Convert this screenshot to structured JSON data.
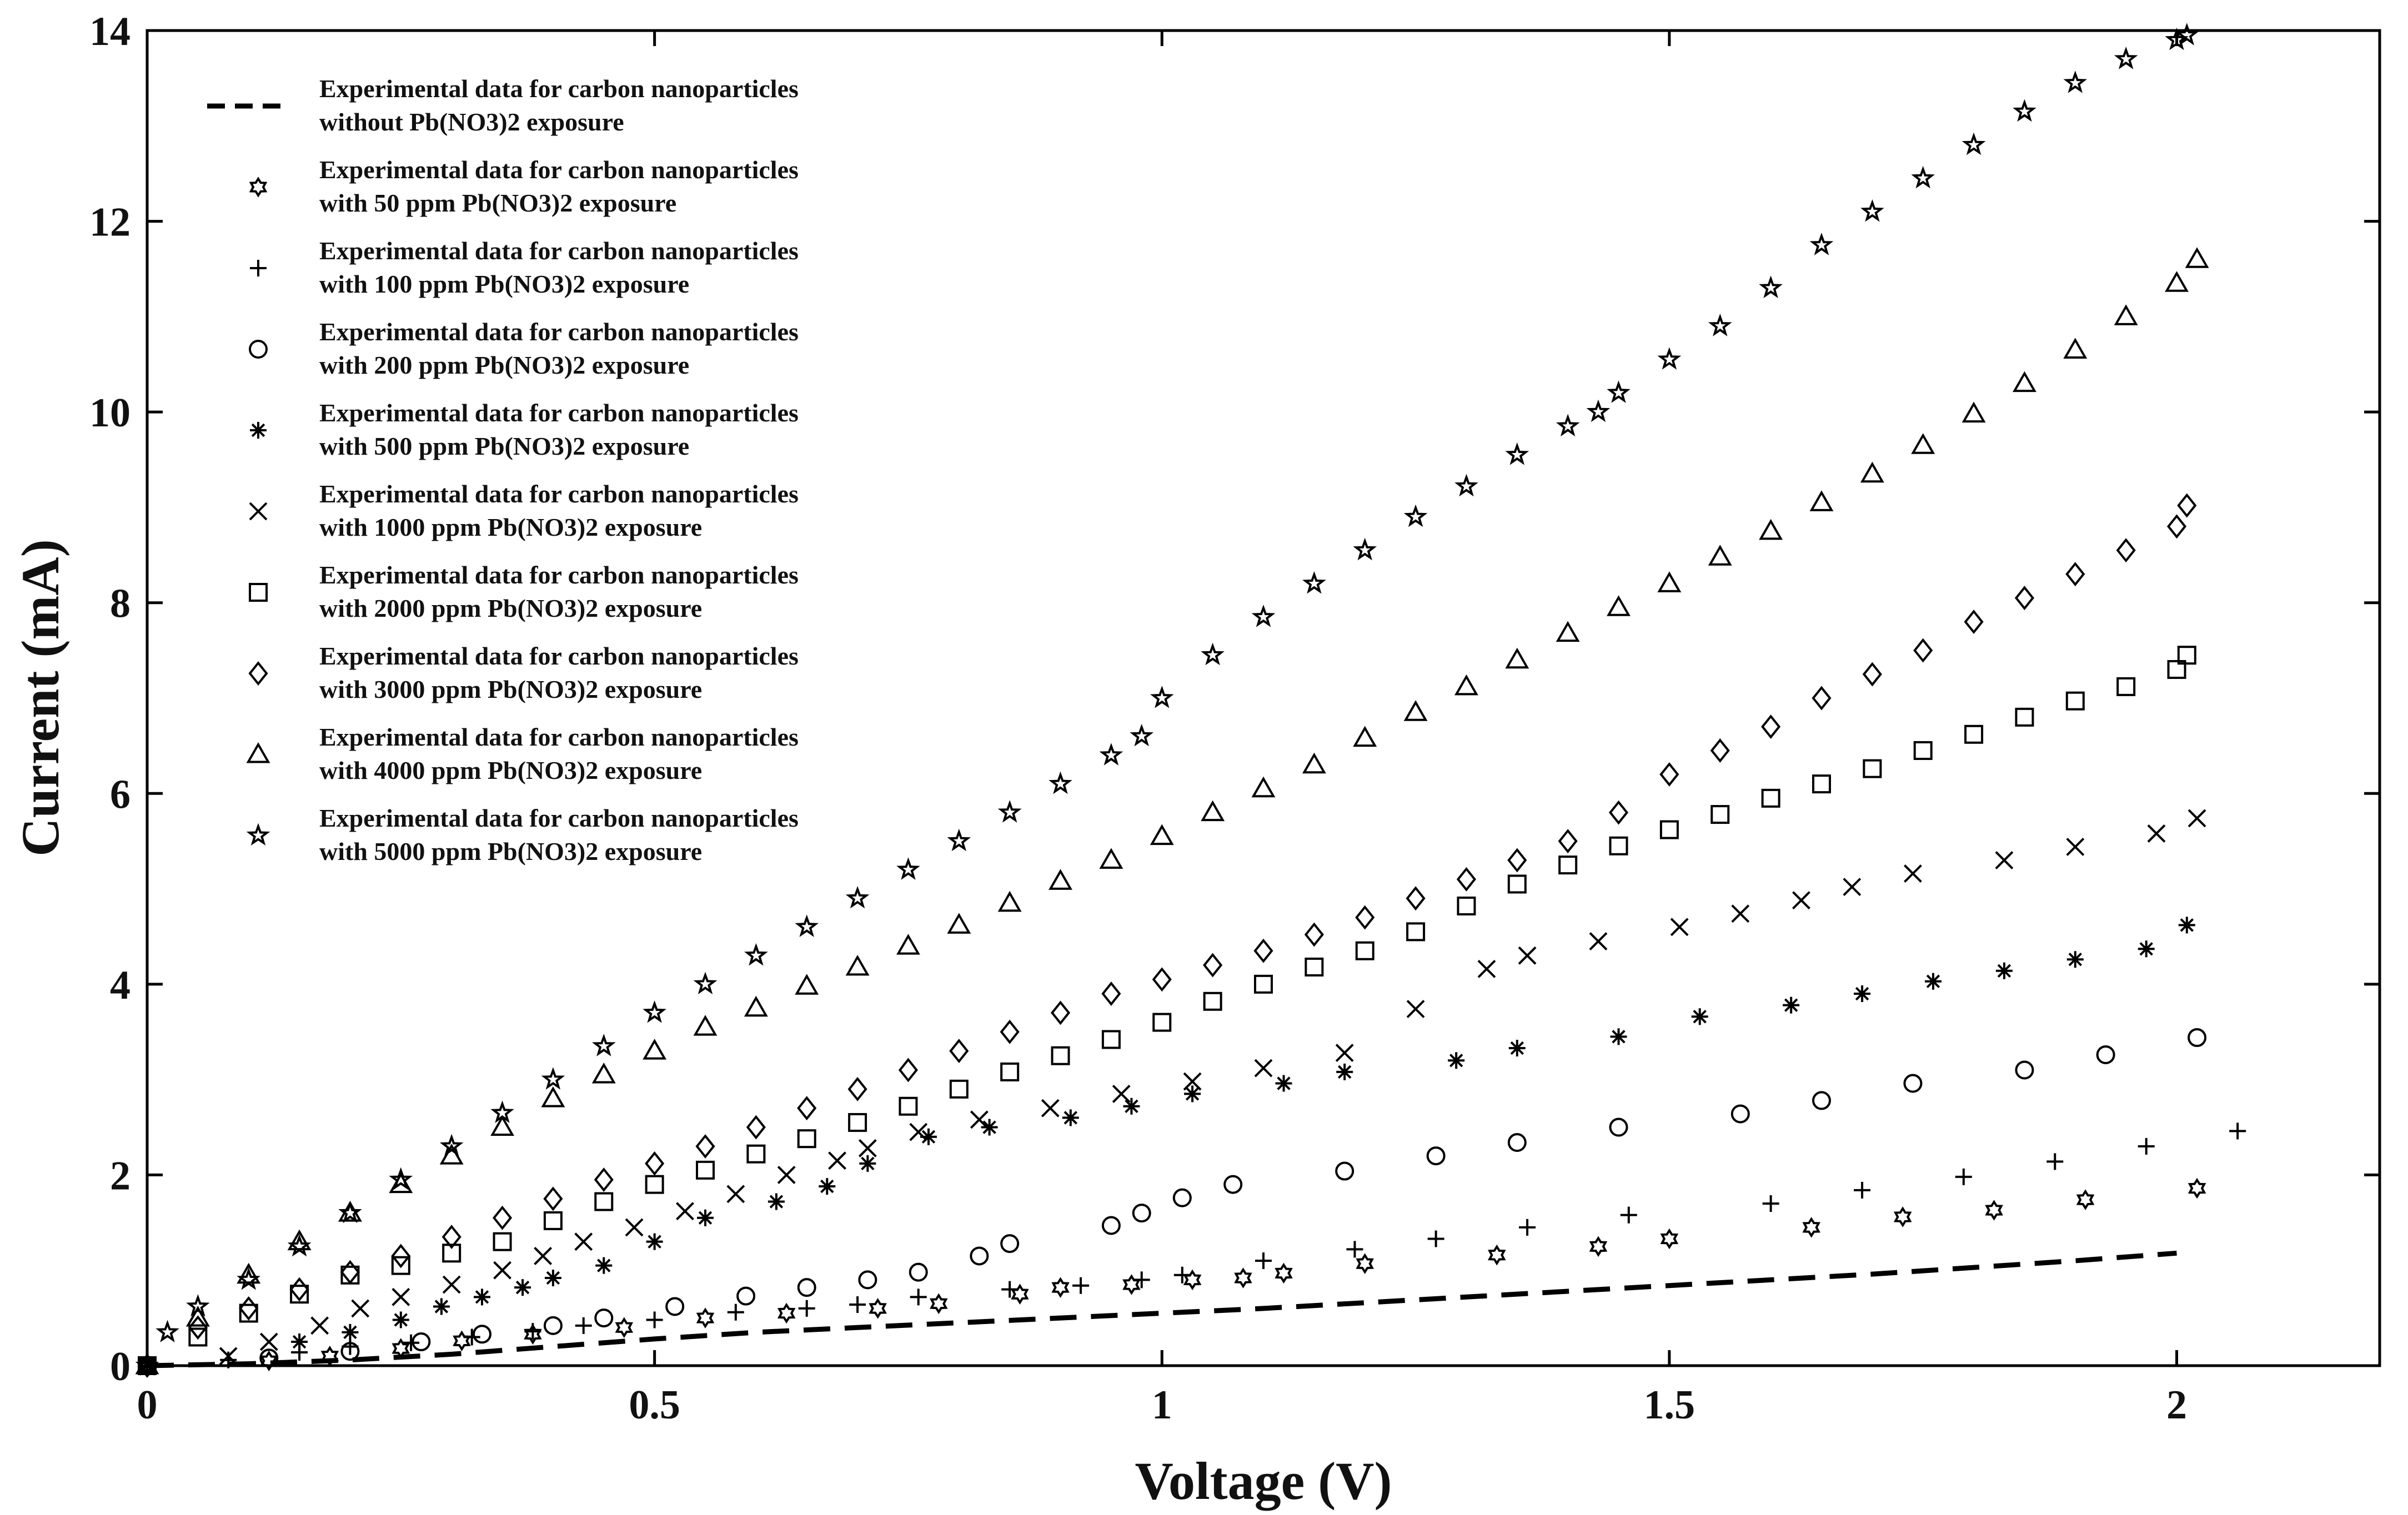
{
  "chart_data": {
    "type": "scatter",
    "title": "",
    "xlabel": "Voltage (V)",
    "ylabel": "Current (mA)",
    "xlim": [
      0,
      2.2
    ],
    "ylim": [
      0,
      14
    ],
    "grid": false,
    "legend_position": "top-left",
    "x_ticks": [
      0,
      0.5,
      1,
      1.5,
      2
    ],
    "x_tick_labels": [
      "0",
      "0.5",
      "1",
      "1.5",
      "2"
    ],
    "y_ticks": [
      0,
      2,
      4,
      6,
      8,
      10,
      12,
      14
    ],
    "y_tick_labels": [
      "0",
      "2",
      "4",
      "6",
      "8",
      "10",
      "12",
      "14"
    ],
    "series": [
      {
        "name": "without",
        "marker": "dashed-line",
        "legend_line1": "Experimental data for carbon nanoparticles",
        "legend_line2": "without Pb(NO3)2 exposure",
        "x": [
          0,
          0.1,
          0.2,
          0.3,
          0.4,
          0.5,
          0.6,
          0.7,
          0.8,
          0.9,
          1.0,
          1.1,
          1.2,
          1.3,
          1.4,
          1.5,
          1.6,
          1.7,
          1.8,
          1.9,
          2.0
        ],
        "y": [
          0,
          0.02,
          0.06,
          0.12,
          0.2,
          0.28,
          0.35,
          0.4,
          0.45,
          0.5,
          0.55,
          0.6,
          0.66,
          0.72,
          0.78,
          0.84,
          0.9,
          0.96,
          1.03,
          1.1,
          1.18
        ]
      },
      {
        "name": "50 ppm",
        "marker": "star6",
        "legend_line1": "Experimental data for carbon nanoparticles",
        "legend_line2": "with 50 ppm Pb(NO3)2 exposure",
        "x": [
          0,
          0.12,
          0.18,
          0.25,
          0.31,
          0.38,
          0.47,
          0.55,
          0.63,
          0.72,
          0.78,
          0.86,
          0.9,
          0.97,
          1.03,
          1.08,
          1.12,
          1.2,
          1.33,
          1.43,
          1.5,
          1.64,
          1.73,
          1.82,
          1.91,
          2.02
        ],
        "y": [
          0,
          0.05,
          0.1,
          0.18,
          0.26,
          0.33,
          0.4,
          0.5,
          0.55,
          0.6,
          0.65,
          0.75,
          0.82,
          0.85,
          0.9,
          0.92,
          0.97,
          1.07,
          1.16,
          1.25,
          1.33,
          1.45,
          1.56,
          1.63,
          1.74,
          1.86
        ]
      },
      {
        "name": "100 ppm",
        "marker": "plus",
        "legend_line1": "Experimental data for carbon nanoparticles",
        "legend_line2": "with 100 ppm Pb(NO3)2 exposure",
        "x": [
          0,
          0.08,
          0.15,
          0.2,
          0.26,
          0.32,
          0.38,
          0.43,
          0.5,
          0.58,
          0.65,
          0.7,
          0.76,
          0.85,
          0.92,
          0.98,
          1.02,
          1.1,
          1.19,
          1.27,
          1.36,
          1.46,
          1.6,
          1.69,
          1.79,
          1.88,
          1.97,
          2.06
        ],
        "y": [
          0,
          0.06,
          0.14,
          0.2,
          0.24,
          0.3,
          0.36,
          0.42,
          0.48,
          0.56,
          0.6,
          0.64,
          0.72,
          0.8,
          0.84,
          0.9,
          0.95,
          1.1,
          1.22,
          1.33,
          1.45,
          1.58,
          1.7,
          1.84,
          1.98,
          2.14,
          2.3,
          2.46
        ]
      },
      {
        "name": "200 ppm",
        "marker": "circle",
        "legend_line1": "Experimental data for carbon nanoparticles",
        "legend_line2": "with 200 ppm Pb(NO3)2 exposure",
        "x": [
          0,
          0.12,
          0.2,
          0.27,
          0.33,
          0.4,
          0.45,
          0.52,
          0.59,
          0.65,
          0.71,
          0.76,
          0.82,
          0.85,
          0.95,
          0.98,
          1.02,
          1.07,
          1.18,
          1.27,
          1.35,
          1.45,
          1.57,
          1.65,
          1.74,
          1.85,
          1.93,
          2.02
        ],
        "y": [
          0,
          0.08,
          0.15,
          0.25,
          0.33,
          0.42,
          0.5,
          0.62,
          0.73,
          0.82,
          0.9,
          0.98,
          1.15,
          1.28,
          1.47,
          1.6,
          1.76,
          1.9,
          2.04,
          2.2,
          2.34,
          2.5,
          2.64,
          2.78,
          2.96,
          3.1,
          3.26,
          3.44
        ]
      },
      {
        "name": "500 ppm",
        "marker": "asterisk",
        "legend_line1": "Experimental data for carbon nanoparticles",
        "legend_line2": "with 500 ppm Pb(NO3)2 exposure",
        "x": [
          0,
          0.15,
          0.2,
          0.25,
          0.29,
          0.33,
          0.37,
          0.4,
          0.45,
          0.5,
          0.55,
          0.62,
          0.67,
          0.71,
          0.77,
          0.83,
          0.91,
          0.97,
          1.03,
          1.12,
          1.18,
          1.29,
          1.35,
          1.45,
          1.53,
          1.62,
          1.69,
          1.76,
          1.83,
          1.9,
          1.97,
          2.01
        ],
        "y": [
          0,
          0.25,
          0.35,
          0.48,
          0.62,
          0.72,
          0.82,
          0.92,
          1.05,
          1.3,
          1.55,
          1.72,
          1.88,
          2.12,
          2.4,
          2.5,
          2.6,
          2.72,
          2.85,
          2.96,
          3.08,
          3.2,
          3.33,
          3.45,
          3.66,
          3.78,
          3.9,
          4.03,
          4.14,
          4.26,
          4.37,
          4.62
        ]
      },
      {
        "name": "1000 ppm",
        "marker": "cross",
        "legend_line1": "Experimental data for carbon nanoparticles",
        "legend_line2": "with 1000 ppm Pb(NO3)2 exposure",
        "x": [
          0,
          0.08,
          0.12,
          0.17,
          0.21,
          0.25,
          0.3,
          0.35,
          0.39,
          0.43,
          0.48,
          0.53,
          0.58,
          0.63,
          0.68,
          0.71,
          0.76,
          0.82,
          0.89,
          0.96,
          1.03,
          1.1,
          1.18,
          1.25,
          1.32,
          1.36,
          1.43,
          1.51,
          1.57,
          1.63,
          1.68,
          1.74,
          1.83,
          1.9,
          1.98,
          2.02
        ],
        "y": [
          0,
          0.1,
          0.25,
          0.42,
          0.6,
          0.72,
          0.85,
          1.0,
          1.15,
          1.3,
          1.45,
          1.62,
          1.8,
          2.0,
          2.15,
          2.28,
          2.45,
          2.58,
          2.7,
          2.85,
          2.98,
          3.12,
          3.28,
          3.74,
          4.16,
          4.3,
          4.45,
          4.6,
          4.74,
          4.88,
          5.02,
          5.16,
          5.3,
          5.44,
          5.58,
          5.74
        ]
      },
      {
        "name": "2000 ppm",
        "marker": "square",
        "legend_line1": "Experimental data for carbon nanoparticles",
        "legend_line2": "with 2000 ppm Pb(NO3)2 exposure",
        "x": [
          0,
          0.05,
          0.1,
          0.15,
          0.2,
          0.25,
          0.3,
          0.35,
          0.4,
          0.45,
          0.5,
          0.55,
          0.6,
          0.65,
          0.7,
          0.75,
          0.8,
          0.85,
          0.9,
          0.95,
          1.0,
          1.05,
          1.1,
          1.15,
          1.2,
          1.25,
          1.3,
          1.35,
          1.4,
          1.45,
          1.5,
          1.55,
          1.6,
          1.65,
          1.7,
          1.75,
          1.8,
          1.85,
          1.9,
          1.95,
          2.0,
          2.01
        ],
        "y": [
          0,
          0.3,
          0.55,
          0.75,
          0.95,
          1.05,
          1.18,
          1.3,
          1.52,
          1.72,
          1.9,
          2.05,
          2.22,
          2.38,
          2.55,
          2.72,
          2.9,
          3.08,
          3.25,
          3.42,
          3.6,
          3.82,
          4.0,
          4.18,
          4.35,
          4.55,
          4.82,
          5.05,
          5.25,
          5.45,
          5.62,
          5.78,
          5.95,
          6.1,
          6.26,
          6.45,
          6.62,
          6.8,
          6.97,
          7.12,
          7.3,
          7.45
        ]
      },
      {
        "name": "3000 ppm",
        "marker": "diamond",
        "legend_line1": "Experimental data for carbon nanoparticles",
        "legend_line2": "with 3000 ppm Pb(NO3)2 exposure",
        "x": [
          0,
          0.05,
          0.1,
          0.15,
          0.2,
          0.25,
          0.3,
          0.35,
          0.4,
          0.45,
          0.5,
          0.55,
          0.6,
          0.65,
          0.7,
          0.75,
          0.8,
          0.85,
          0.9,
          0.95,
          1.0,
          1.05,
          1.1,
          1.15,
          1.2,
          1.25,
          1.3,
          1.35,
          1.4,
          1.45,
          1.5,
          1.55,
          1.6,
          1.65,
          1.7,
          1.75,
          1.8,
          1.85,
          1.9,
          1.95,
          2.0,
          2.01
        ],
        "y": [
          0,
          0.4,
          0.6,
          0.8,
          0.98,
          1.15,
          1.35,
          1.55,
          1.75,
          1.95,
          2.12,
          2.3,
          2.5,
          2.7,
          2.9,
          3.1,
          3.3,
          3.5,
          3.7,
          3.9,
          4.05,
          4.2,
          4.35,
          4.52,
          4.7,
          4.9,
          5.1,
          5.3,
          5.5,
          5.8,
          6.2,
          6.45,
          6.7,
          7.0,
          7.25,
          7.5,
          7.8,
          8.05,
          8.3,
          8.55,
          8.8,
          9.02
        ]
      },
      {
        "name": "4000 ppm",
        "marker": "triangle",
        "legend_line1": "Experimental data for carbon nanoparticles",
        "legend_line2": "with 4000 ppm Pb(NO3)2 exposure",
        "x": [
          0,
          0.05,
          0.1,
          0.15,
          0.2,
          0.25,
          0.3,
          0.35,
          0.4,
          0.45,
          0.5,
          0.55,
          0.6,
          0.65,
          0.7,
          0.75,
          0.8,
          0.85,
          0.9,
          0.95,
          1.0,
          1.05,
          1.1,
          1.15,
          1.2,
          1.25,
          1.3,
          1.35,
          1.4,
          1.45,
          1.5,
          1.55,
          1.6,
          1.65,
          1.7,
          1.75,
          1.8,
          1.85,
          1.9,
          1.95,
          2.0,
          2.02
        ],
        "y": [
          0,
          0.5,
          0.95,
          1.3,
          1.6,
          1.9,
          2.2,
          2.5,
          2.8,
          3.05,
          3.3,
          3.55,
          3.75,
          3.98,
          4.18,
          4.4,
          4.62,
          4.85,
          5.08,
          5.3,
          5.55,
          5.8,
          6.05,
          6.3,
          6.58,
          6.85,
          7.12,
          7.4,
          7.68,
          7.95,
          8.2,
          8.48,
          8.75,
          9.05,
          9.35,
          9.65,
          9.98,
          10.3,
          10.65,
          11.0,
          11.35,
          11.6
        ]
      },
      {
        "name": "5000 ppm",
        "marker": "star5",
        "legend_line1": "Experimental data for carbon nanoparticles",
        "legend_line2": "with 5000 ppm Pb(NO3)2 exposure",
        "x": [
          0,
          0.02,
          0.05,
          0.1,
          0.15,
          0.2,
          0.25,
          0.3,
          0.35,
          0.4,
          0.45,
          0.5,
          0.55,
          0.6,
          0.65,
          0.7,
          0.75,
          0.8,
          0.85,
          0.9,
          0.95,
          0.98,
          1.0,
          1.05,
          1.1,
          1.15,
          1.2,
          1.25,
          1.3,
          1.35,
          1.4,
          1.43,
          1.45,
          1.5,
          1.55,
          1.6,
          1.65,
          1.7,
          1.75,
          1.8,
          1.85,
          1.9,
          1.95,
          2.0,
          2.01
        ],
        "y": [
          0,
          0.35,
          0.62,
          0.9,
          1.25,
          1.6,
          1.95,
          2.3,
          2.65,
          3.0,
          3.35,
          3.7,
          4.0,
          4.3,
          4.6,
          4.9,
          5.2,
          5.5,
          5.8,
          6.1,
          6.4,
          6.6,
          7.0,
          7.45,
          7.85,
          8.2,
          8.55,
          8.9,
          9.22,
          9.55,
          9.85,
          10.0,
          10.2,
          10.55,
          10.9,
          11.3,
          11.75,
          12.1,
          12.45,
          12.8,
          13.15,
          13.45,
          13.7,
          13.9,
          13.95
        ]
      }
    ]
  }
}
